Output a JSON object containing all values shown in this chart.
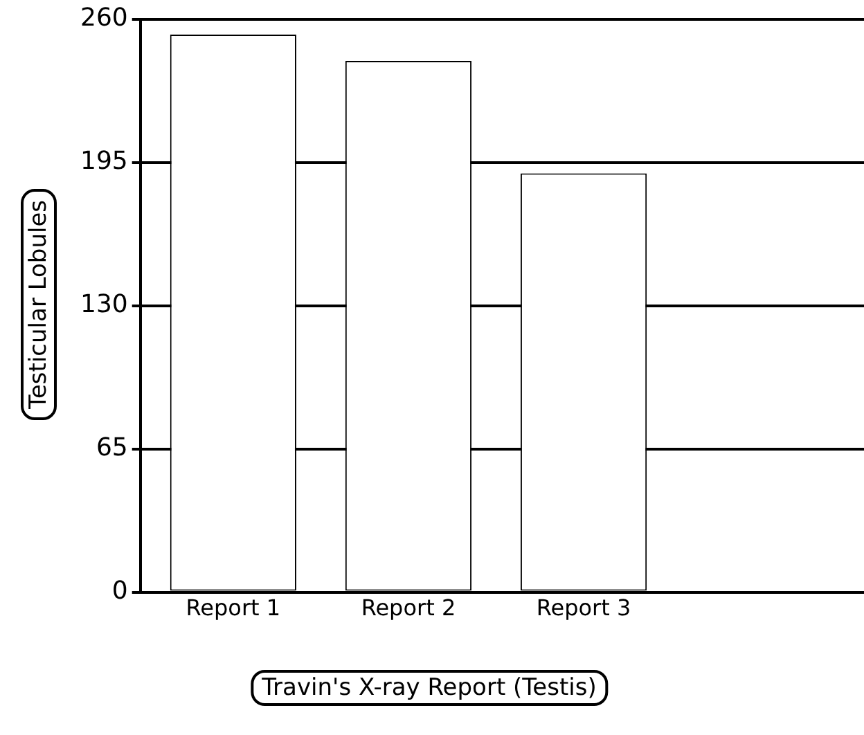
{
  "chart_data": {
    "type": "bar",
    "xlabel": "Travin's X-ray Report (Testis)",
    "ylabel": "Testicular Lobules",
    "categories": [
      "Report 1",
      "Report 2",
      "Report 3"
    ],
    "values": [
      253,
      241,
      190
    ],
    "color": "#ffffff",
    "ylim": [
      0,
      260
    ],
    "yticks": [
      0,
      65,
      130,
      195,
      260
    ],
    "grid": "y"
  }
}
